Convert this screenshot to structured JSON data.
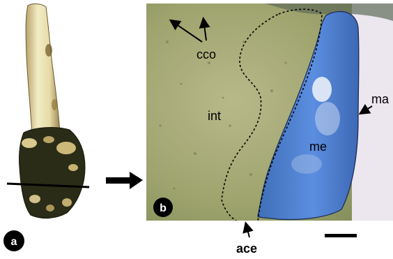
{
  "panel_a": {
    "badge": "a"
  },
  "panel_b": {
    "badge": "b",
    "labels": {
      "cco": "cco",
      "int": "int",
      "me": "me",
      "ma": "ma",
      "ace": "ace"
    }
  },
  "colors": {
    "micrograph_bg": "#9da46c",
    "stain_blue": "#4b7fd6",
    "stain_pale": "#c8d6ee",
    "specimen_cream": "#e8e0b0",
    "specimen_dark": "#2a2c17",
    "badge": "#000000"
  }
}
